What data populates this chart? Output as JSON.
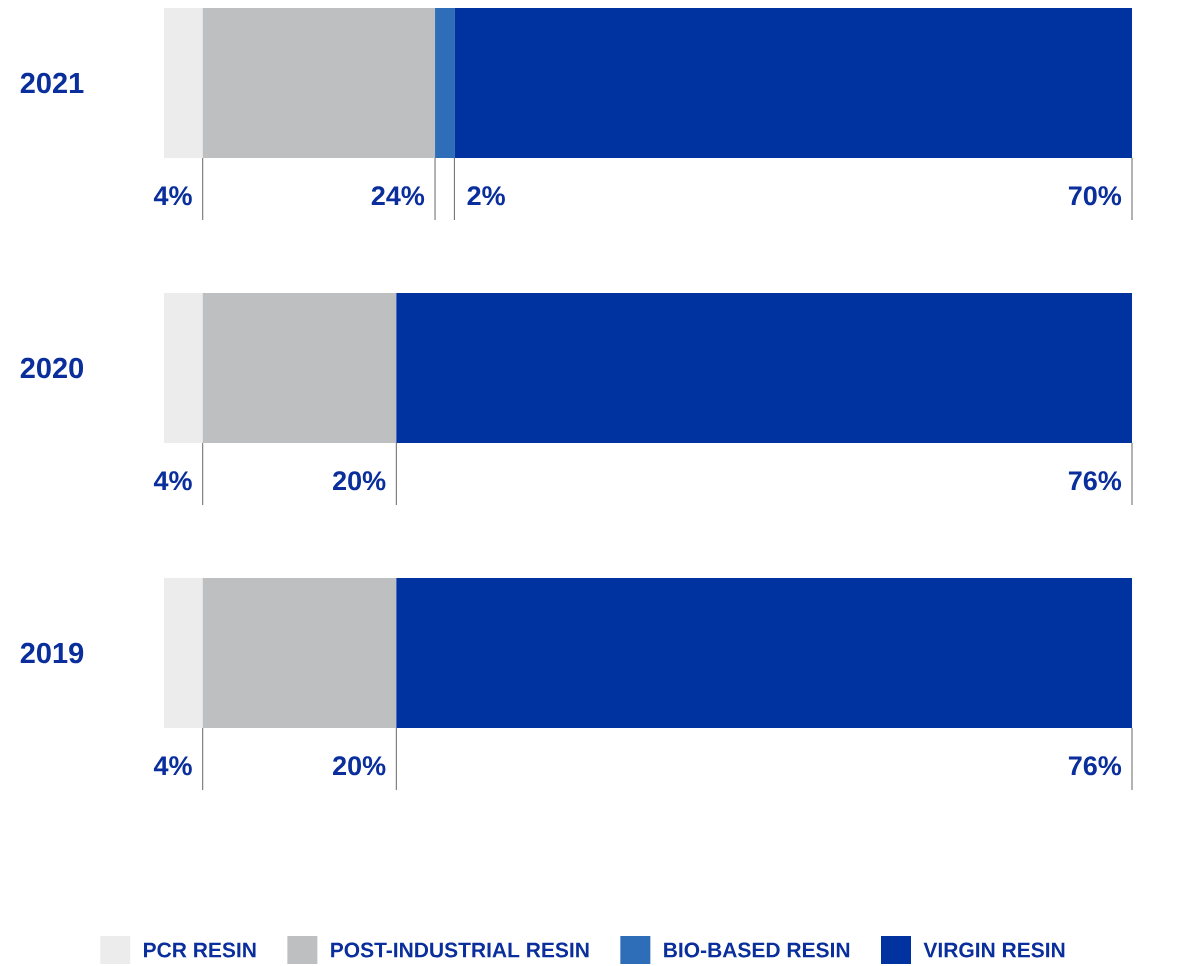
{
  "chart_data": {
    "type": "bar",
    "orientation": "horizontal",
    "stacked": true,
    "categories": [
      "2021",
      "2020",
      "2019"
    ],
    "legend": "bottom",
    "series": [
      {
        "name": "PCR RESIN",
        "color": "#ececec",
        "values": [
          4,
          4,
          4
        ],
        "value_labels": [
          "4%",
          "4%",
          "4%"
        ]
      },
      {
        "name": "POST-INDUSTRIAL RESIN",
        "color": "#bebfc1",
        "values": [
          24,
          20,
          20
        ],
        "value_labels": [
          "24%",
          "20%",
          "20%"
        ]
      },
      {
        "name": "BIO-BASED RESIN",
        "color": "#2e6db7",
        "values": [
          2,
          null,
          null
        ],
        "value_labels": [
          "2%",
          null,
          null
        ]
      },
      {
        "name": "VIRGIN RESIN",
        "color": "#0033a0",
        "values": [
          70,
          76,
          76
        ],
        "value_labels": [
          "70%",
          "76%",
          "76%"
        ]
      }
    ]
  }
}
